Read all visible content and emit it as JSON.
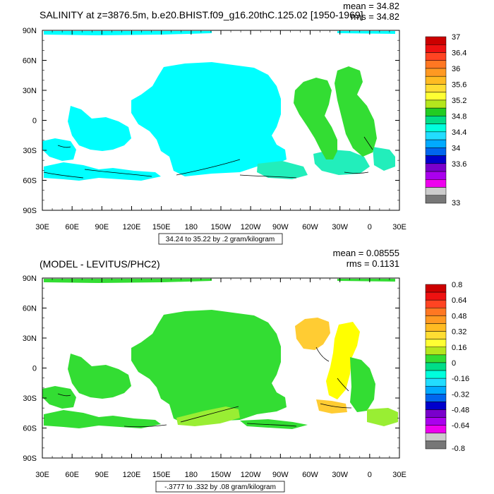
{
  "chart_data": [
    {
      "type": "heatmap",
      "title": "SALINITY at z=3876.5m, b.e20.BHIST.f09_g16.20thC.125.02 [1950-1969]",
      "mean_text": "mean = 34.82",
      "rms_text": "rms = 34.82",
      "info_text": "34.24 to 35.22 by .2 gram/kilogram",
      "x_tick_labels": [
        "30E",
        "60E",
        "90E",
        "120E",
        "150E",
        "180",
        "150W",
        "120W",
        "90W",
        "60W",
        "30W",
        "0",
        "30E"
      ],
      "y_tick_labels": [
        "90N",
        "60N",
        "30N",
        "0",
        "30S",
        "60S",
        "90S"
      ],
      "xlim": [
        30,
        390
      ],
      "ylim": [
        -90,
        90
      ],
      "colorbar": {
        "labels": [
          "37",
          "36.4",
          "36",
          "35.6",
          "35.2",
          "34.8",
          "34.4",
          "34",
          "33.6",
          "33"
        ],
        "colors": [
          "#cc0000",
          "#ee1111",
          "#ff4422",
          "#ff7722",
          "#ff9922",
          "#ffbb22",
          "#ffdd33",
          "#ffff33",
          "#b5e61d",
          "#22cc22",
          "#00dd88",
          "#00ffdd",
          "#22ddff",
          "#00aaff",
          "#0066ee",
          "#0000cc",
          "#7a00cc",
          "#aa00ee",
          "#ee00ee",
          "#cccccc",
          "#777777"
        ]
      }
    },
    {
      "type": "heatmap",
      "title": "(MODEL - LEVITUS/PHC2)",
      "mean_text": "mean = 0.08555",
      "rms_text": "rms = 0.1131",
      "info_text": "-.3777 to .332 by .08 gram/kilogram",
      "x_tick_labels": [
        "30E",
        "60E",
        "90E",
        "120E",
        "150E",
        "180",
        "150W",
        "120W",
        "90W",
        "60W",
        "30W",
        "0",
        "30E"
      ],
      "y_tick_labels": [
        "90N",
        "60N",
        "30N",
        "0",
        "30S",
        "60S",
        "90S"
      ],
      "xlim": [
        30,
        390
      ],
      "ylim": [
        -90,
        90
      ],
      "colorbar": {
        "labels": [
          "0.8",
          "0.64",
          "0.48",
          "0.32",
          "0.16",
          "0",
          "-0.16",
          "-0.32",
          "-0.48",
          "-0.64",
          "-0.8"
        ],
        "colors": [
          "#cc0000",
          "#ee1111",
          "#ff4422",
          "#ff7722",
          "#ff9922",
          "#ffbb22",
          "#ffdd33",
          "#ffff33",
          "#b5e61d",
          "#33dd33",
          "#00dd88",
          "#00ffdd",
          "#22ddff",
          "#00aaff",
          "#0066ee",
          "#0000cc",
          "#7a00cc",
          "#aa00ee",
          "#ee00ee",
          "#cccccc",
          "#777777"
        ]
      }
    }
  ],
  "colors": {
    "panel1_deep": "#00ffff",
    "panel1_atlantic": "#33dd33",
    "panel1_south": "#22eebb",
    "panel2_main": "#33dd33",
    "panel2_lime": "#99ee33",
    "panel2_yellow": "#ffff00",
    "panel2_orange": "#ffcc33"
  }
}
